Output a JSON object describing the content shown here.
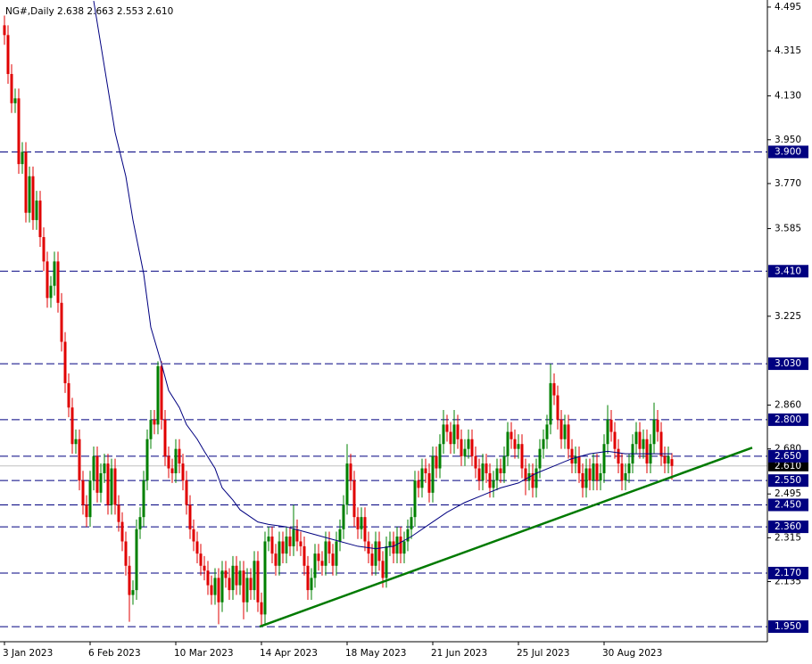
{
  "chart_data": {
    "type": "candlestick",
    "title": "NG#,Daily  2.638 2.663 2.553 2.610",
    "up_color": "#008000",
    "down_color": "#e00000",
    "ohlc": [
      [
        4.42,
        4.46,
        4.34,
        4.38
      ],
      [
        4.38,
        4.42,
        4.18,
        4.22
      ],
      [
        4.22,
        4.26,
        4.06,
        4.1
      ],
      [
        4.1,
        4.16,
        4.06,
        4.12
      ],
      [
        4.12,
        4.16,
        3.81,
        3.85
      ],
      [
        3.85,
        3.94,
        3.81,
        3.9
      ],
      [
        3.9,
        3.94,
        3.61,
        3.65
      ],
      [
        3.65,
        3.84,
        3.61,
        3.8
      ],
      [
        3.8,
        3.84,
        3.58,
        3.62
      ],
      [
        3.62,
        3.74,
        3.58,
        3.7
      ],
      [
        3.7,
        3.74,
        3.51,
        3.55
      ],
      [
        3.55,
        3.59,
        3.41,
        3.45
      ],
      [
        3.45,
        3.49,
        3.26,
        3.3
      ],
      [
        3.3,
        3.39,
        3.26,
        3.35
      ],
      [
        3.35,
        3.49,
        3.31,
        3.45
      ],
      [
        3.45,
        3.49,
        3.24,
        3.28
      ],
      [
        3.28,
        3.32,
        3.08,
        3.12
      ],
      [
        3.12,
        3.16,
        2.91,
        2.95
      ],
      [
        2.95,
        2.99,
        2.81,
        2.85
      ],
      [
        2.85,
        2.89,
        2.66,
        2.7
      ],
      [
        2.7,
        2.76,
        2.66,
        2.72
      ],
      [
        2.72,
        2.76,
        2.51,
        2.55
      ],
      [
        2.55,
        2.59,
        2.41,
        2.45
      ],
      [
        2.45,
        2.49,
        2.36,
        2.4
      ],
      [
        2.4,
        2.59,
        2.36,
        2.55
      ],
      [
        2.55,
        2.69,
        2.51,
        2.65
      ],
      [
        2.65,
        2.69,
        2.46,
        2.5
      ],
      [
        2.5,
        2.62,
        2.46,
        2.58
      ],
      [
        2.58,
        2.66,
        2.54,
        2.62
      ],
      [
        2.62,
        2.66,
        2.41,
        2.45
      ],
      [
        2.45,
        2.64,
        2.41,
        2.6
      ],
      [
        2.6,
        2.64,
        2.41,
        2.45
      ],
      [
        2.45,
        2.49,
        2.34,
        2.38
      ],
      [
        2.38,
        2.42,
        2.26,
        2.3
      ],
      [
        2.3,
        2.34,
        2.16,
        2.2
      ],
      [
        2.2,
        2.24,
        1.97,
        2.08
      ],
      [
        2.08,
        2.14,
        2.04,
        2.1
      ],
      [
        2.1,
        2.39,
        2.06,
        2.35
      ],
      [
        2.35,
        2.44,
        2.31,
        2.4
      ],
      [
        2.4,
        2.59,
        2.36,
        2.55
      ],
      [
        2.55,
        2.76,
        2.51,
        2.72
      ],
      [
        2.72,
        2.84,
        2.68,
        2.8
      ],
      [
        2.8,
        2.84,
        2.74,
        2.78
      ],
      [
        2.78,
        3.04,
        2.74,
        3.02
      ],
      [
        3.02,
        3.04,
        2.76,
        2.8
      ],
      [
        2.8,
        2.84,
        2.61,
        2.65
      ],
      [
        2.65,
        2.69,
        2.56,
        2.6
      ],
      [
        2.6,
        2.64,
        2.54,
        2.58
      ],
      [
        2.58,
        2.72,
        2.54,
        2.68
      ],
      [
        2.68,
        2.72,
        2.58,
        2.62
      ],
      [
        2.62,
        2.66,
        2.51,
        2.55
      ],
      [
        2.55,
        2.59,
        2.41,
        2.45
      ],
      [
        2.45,
        2.49,
        2.31,
        2.35
      ],
      [
        2.35,
        2.39,
        2.26,
        2.3
      ],
      [
        2.3,
        2.34,
        2.21,
        2.25
      ],
      [
        2.25,
        2.29,
        2.16,
        2.2
      ],
      [
        2.2,
        2.24,
        2.14,
        2.18
      ],
      [
        2.18,
        2.22,
        2.08,
        2.12
      ],
      [
        2.12,
        2.16,
        2.04,
        2.08
      ],
      [
        2.08,
        2.19,
        2.04,
        2.15
      ],
      [
        2.15,
        2.19,
        1.96,
        2.05
      ],
      [
        2.05,
        2.22,
        2.01,
        2.18
      ],
      [
        2.18,
        2.22,
        2.11,
        2.15
      ],
      [
        2.15,
        2.19,
        2.06,
        2.1
      ],
      [
        2.1,
        2.24,
        2.06,
        2.2
      ],
      [
        2.2,
        2.24,
        2.08,
        2.12
      ],
      [
        2.12,
        2.22,
        2.08,
        2.18
      ],
      [
        2.18,
        2.22,
        1.98,
        2.05
      ],
      [
        2.05,
        2.19,
        2.01,
        2.15
      ],
      [
        2.15,
        2.19,
        2.06,
        2.1
      ],
      [
        2.1,
        2.26,
        2.06,
        2.22
      ],
      [
        2.22,
        2.26,
        2.01,
        2.05
      ],
      [
        2.05,
        2.09,
        1.95,
        2.0
      ],
      [
        2.0,
        2.34,
        1.96,
        2.3
      ],
      [
        2.3,
        2.36,
        2.26,
        2.32
      ],
      [
        2.32,
        2.36,
        2.21,
        2.25
      ],
      [
        2.25,
        2.29,
        2.16,
        2.2
      ],
      [
        2.2,
        2.34,
        2.16,
        2.3
      ],
      [
        2.3,
        2.34,
        2.21,
        2.25
      ],
      [
        2.25,
        2.36,
        2.21,
        2.32
      ],
      [
        2.32,
        2.36,
        2.24,
        2.28
      ],
      [
        2.28,
        2.45,
        2.24,
        2.35
      ],
      [
        2.35,
        2.39,
        2.26,
        2.3
      ],
      [
        2.3,
        2.34,
        2.24,
        2.28
      ],
      [
        2.28,
        2.32,
        2.16,
        2.2
      ],
      [
        2.2,
        2.24,
        2.06,
        2.1
      ],
      [
        2.1,
        2.19,
        2.06,
        2.15
      ],
      [
        2.15,
        2.29,
        2.11,
        2.25
      ],
      [
        2.25,
        2.29,
        2.18,
        2.22
      ],
      [
        2.22,
        2.26,
        2.16,
        2.2
      ],
      [
        2.2,
        2.34,
        2.16,
        2.3
      ],
      [
        2.3,
        2.34,
        2.21,
        2.25
      ],
      [
        2.25,
        2.29,
        2.16,
        2.2
      ],
      [
        2.2,
        2.34,
        2.16,
        2.3
      ],
      [
        2.3,
        2.39,
        2.26,
        2.35
      ],
      [
        2.35,
        2.49,
        2.31,
        2.45
      ],
      [
        2.45,
        2.7,
        2.41,
        2.62
      ],
      [
        2.62,
        2.66,
        2.51,
        2.55
      ],
      [
        2.55,
        2.59,
        2.36,
        2.4
      ],
      [
        2.4,
        2.44,
        2.31,
        2.35
      ],
      [
        2.35,
        2.44,
        2.31,
        2.4
      ],
      [
        2.4,
        2.44,
        2.26,
        2.3
      ],
      [
        2.3,
        2.34,
        2.21,
        2.25
      ],
      [
        2.25,
        2.29,
        2.16,
        2.2
      ],
      [
        2.2,
        2.34,
        2.16,
        2.3
      ],
      [
        2.3,
        2.34,
        2.18,
        2.22
      ],
      [
        2.22,
        2.26,
        2.11,
        2.15
      ],
      [
        2.15,
        2.32,
        2.11,
        2.28
      ],
      [
        2.28,
        2.34,
        2.24,
        2.3
      ],
      [
        2.3,
        2.34,
        2.21,
        2.25
      ],
      [
        2.25,
        2.36,
        2.21,
        2.32
      ],
      [
        2.32,
        2.36,
        2.21,
        2.25
      ],
      [
        2.25,
        2.34,
        2.21,
        2.3
      ],
      [
        2.3,
        2.39,
        2.26,
        2.35
      ],
      [
        2.35,
        2.44,
        2.31,
        2.4
      ],
      [
        2.4,
        2.59,
        2.36,
        2.55
      ],
      [
        2.55,
        2.59,
        2.48,
        2.52
      ],
      [
        2.52,
        2.64,
        2.48,
        2.6
      ],
      [
        2.6,
        2.64,
        2.54,
        2.58
      ],
      [
        2.58,
        2.62,
        2.46,
        2.5
      ],
      [
        2.5,
        2.69,
        2.46,
        2.65
      ],
      [
        2.65,
        2.69,
        2.56,
        2.6
      ],
      [
        2.6,
        2.74,
        2.56,
        2.7
      ],
      [
        2.7,
        2.84,
        2.66,
        2.78
      ],
      [
        2.78,
        2.82,
        2.71,
        2.75
      ],
      [
        2.75,
        2.79,
        2.66,
        2.7
      ],
      [
        2.7,
        2.84,
        2.66,
        2.78
      ],
      [
        2.78,
        2.82,
        2.68,
        2.72
      ],
      [
        2.72,
        2.76,
        2.61,
        2.65
      ],
      [
        2.65,
        2.72,
        2.61,
        2.68
      ],
      [
        2.68,
        2.76,
        2.64,
        2.72
      ],
      [
        2.72,
        2.76,
        2.61,
        2.65
      ],
      [
        2.65,
        2.69,
        2.56,
        2.6
      ],
      [
        2.6,
        2.64,
        2.51,
        2.55
      ],
      [
        2.55,
        2.66,
        2.51,
        2.62
      ],
      [
        2.62,
        2.66,
        2.54,
        2.58
      ],
      [
        2.58,
        2.62,
        2.48,
        2.52
      ],
      [
        2.52,
        2.59,
        2.48,
        2.55
      ],
      [
        2.55,
        2.64,
        2.51,
        2.6
      ],
      [
        2.6,
        2.64,
        2.54,
        2.58
      ],
      [
        2.58,
        2.69,
        2.54,
        2.65
      ],
      [
        2.65,
        2.79,
        2.61,
        2.75
      ],
      [
        2.75,
        2.79,
        2.68,
        2.72
      ],
      [
        2.72,
        2.76,
        2.64,
        2.68
      ],
      [
        2.68,
        2.74,
        2.64,
        2.7
      ],
      [
        2.7,
        2.74,
        2.56,
        2.6
      ],
      [
        2.6,
        2.64,
        2.49,
        2.55
      ],
      [
        2.55,
        2.62,
        2.51,
        2.58
      ],
      [
        2.58,
        2.62,
        2.48,
        2.52
      ],
      [
        2.52,
        2.64,
        2.48,
        2.6
      ],
      [
        2.6,
        2.72,
        2.56,
        2.68
      ],
      [
        2.68,
        2.76,
        2.64,
        2.72
      ],
      [
        2.72,
        2.82,
        2.68,
        2.78
      ],
      [
        2.78,
        3.03,
        2.74,
        2.95
      ],
      [
        2.95,
        2.99,
        2.86,
        2.9
      ],
      [
        2.9,
        2.94,
        2.76,
        2.8
      ],
      [
        2.8,
        2.84,
        2.68,
        2.72
      ],
      [
        2.72,
        2.82,
        2.68,
        2.78
      ],
      [
        2.78,
        2.82,
        2.64,
        2.68
      ],
      [
        2.68,
        2.72,
        2.58,
        2.62
      ],
      [
        2.62,
        2.69,
        2.58,
        2.65
      ],
      [
        2.65,
        2.69,
        2.54,
        2.58
      ],
      [
        2.58,
        2.62,
        2.48,
        2.52
      ],
      [
        2.52,
        2.64,
        2.48,
        2.6
      ],
      [
        2.6,
        2.64,
        2.51,
        2.55
      ],
      [
        2.55,
        2.66,
        2.51,
        2.62
      ],
      [
        2.62,
        2.66,
        2.51,
        2.55
      ],
      [
        2.55,
        2.62,
        2.51,
        2.58
      ],
      [
        2.58,
        2.74,
        2.54,
        2.7
      ],
      [
        2.7,
        2.86,
        2.66,
        2.8
      ],
      [
        2.8,
        2.84,
        2.71,
        2.75
      ],
      [
        2.75,
        2.79,
        2.64,
        2.68
      ],
      [
        2.68,
        2.72,
        2.58,
        2.62
      ],
      [
        2.62,
        2.66,
        2.51,
        2.55
      ],
      [
        2.55,
        2.62,
        2.51,
        2.58
      ],
      [
        2.58,
        2.66,
        2.54,
        2.62
      ],
      [
        2.62,
        2.74,
        2.58,
        2.7
      ],
      [
        2.7,
        2.79,
        2.66,
        2.75
      ],
      [
        2.75,
        2.79,
        2.64,
        2.68
      ],
      [
        2.68,
        2.76,
        2.64,
        2.72
      ],
      [
        2.72,
        2.76,
        2.58,
        2.62
      ],
      [
        2.62,
        2.74,
        2.58,
        2.7
      ],
      [
        2.7,
        2.87,
        2.66,
        2.8
      ],
      [
        2.8,
        2.84,
        2.71,
        2.75
      ],
      [
        2.75,
        2.79,
        2.61,
        2.65
      ],
      [
        2.65,
        2.69,
        2.58,
        2.62
      ],
      [
        2.62,
        2.69,
        2.58,
        2.65
      ],
      [
        2.638,
        2.663,
        2.553,
        2.61
      ]
    ],
    "ma": {
      "color": "#000080",
      "x": [
        25,
        31,
        34,
        36,
        39,
        41,
        44,
        46,
        49,
        51,
        54,
        56,
        59,
        61,
        64,
        66,
        69,
        71,
        74,
        79,
        84,
        89,
        94,
        99,
        104,
        109,
        114,
        119,
        124,
        129,
        134,
        139,
        144,
        149,
        154,
        159,
        164,
        169,
        174,
        179,
        187
      ],
      "values": [
        4.52,
        3.98,
        3.8,
        3.62,
        3.4,
        3.18,
        3.03,
        2.92,
        2.85,
        2.78,
        2.72,
        2.67,
        2.6,
        2.52,
        2.47,
        2.43,
        2.4,
        2.38,
        2.37,
        2.36,
        2.34,
        2.32,
        2.3,
        2.28,
        2.27,
        2.28,
        2.32,
        2.37,
        2.42,
        2.46,
        2.49,
        2.52,
        2.54,
        2.58,
        2.61,
        2.64,
        2.66,
        2.67,
        2.66,
        2.66,
        2.66
      ]
    },
    "trendline": {
      "color": "#007a00",
      "x": [
        71.5,
        209.5
      ],
      "values": [
        1.95,
        2.685
      ]
    },
    "levels": [
      {
        "value": 3.9,
        "label": "3.900"
      },
      {
        "value": 3.41,
        "label": "3.410"
      },
      {
        "value": 3.03,
        "label": "3.030"
      },
      {
        "value": 2.8,
        "label": "2.800"
      },
      {
        "value": 2.65,
        "label": "2.650"
      },
      {
        "value": 2.55,
        "label": "2.550"
      },
      {
        "value": 2.45,
        "label": "2.450"
      },
      {
        "value": 2.36,
        "label": "2.360"
      },
      {
        "value": 2.17,
        "label": "2.170"
      },
      {
        "value": 1.95,
        "label": "1.950"
      }
    ],
    "level_color": "#000080",
    "last_price": {
      "value": 2.61,
      "label": "2.610"
    },
    "xlim": [
      -1.25,
      213.75
    ],
    "ylim": [
      1.888,
      4.524
    ],
    "xticks": [
      {
        "value": 0,
        "label": "3 Jan 2023"
      },
      {
        "value": 24,
        "label": "6 Feb 2023"
      },
      {
        "value": 48,
        "label": "10 Mar 2023"
      },
      {
        "value": 72,
        "label": "14 Apr 2023"
      },
      {
        "value": 96,
        "label": "18 May 2023"
      },
      {
        "value": 120,
        "label": "21 Jun 2023"
      },
      {
        "value": 144,
        "label": "25 Jul 2023"
      },
      {
        "value": 168,
        "label": "30 Aug 2023"
      }
    ],
    "yticks": [
      4.495,
      4.315,
      {
        "value": 4.13,
        "label": "4.130"
      },
      {
        "value": 3.95,
        "label": "3.950"
      },
      {
        "value": 3.77,
        "label": "3.770"
      },
      3.585,
      3.225,
      {
        "value": 2.86,
        "label": "2.860"
      },
      {
        "value": 2.68,
        "label": "2.680"
      },
      2.495,
      2.315,
      2.135
    ]
  }
}
